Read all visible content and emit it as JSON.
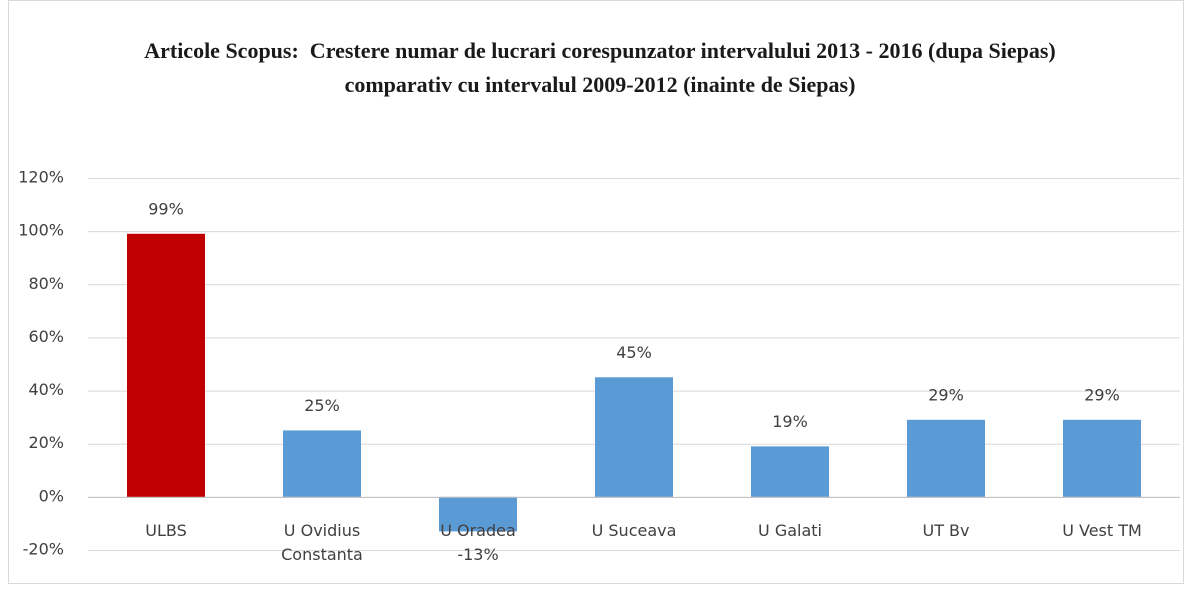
{
  "chart_data": {
    "type": "bar",
    "title": "Articole Scopus:  Crestere numar de lucrari corespunzator intervalului 2013 - 2016 (dupa Siepas) comparativ cu intervalul 2009-2012 (inainte de Siepas)",
    "categories": [
      "ULBS",
      "U Ovidius Constanta",
      "U Oradea",
      "U Suceava",
      "U Galati",
      "UT Bv",
      "U Vest TM"
    ],
    "values": [
      99,
      25,
      -13,
      45,
      19,
      29,
      29
    ],
    "value_labels": [
      "99%",
      "25%",
      "-13%",
      "45%",
      "19%",
      "29%",
      "29%"
    ],
    "colors": [
      "#c00000",
      "#5b9bd5",
      "#5b9bd5",
      "#5b9bd5",
      "#5b9bd5",
      "#5b9bd5",
      "#5b9bd5"
    ],
    "ylim": [
      -20,
      120
    ],
    "yticks": [
      {
        "value": -20,
        "label": "-20%"
      },
      {
        "value": 0,
        "label": "0%"
      },
      {
        "value": 20,
        "label": "20%"
      },
      {
        "value": 40,
        "label": "40%"
      },
      {
        "value": 60,
        "label": "60%"
      },
      {
        "value": 80,
        "label": "80%"
      },
      {
        "value": 100,
        "label": "100%"
      },
      {
        "value": 120,
        "label": "120%"
      }
    ],
    "grid": true
  }
}
